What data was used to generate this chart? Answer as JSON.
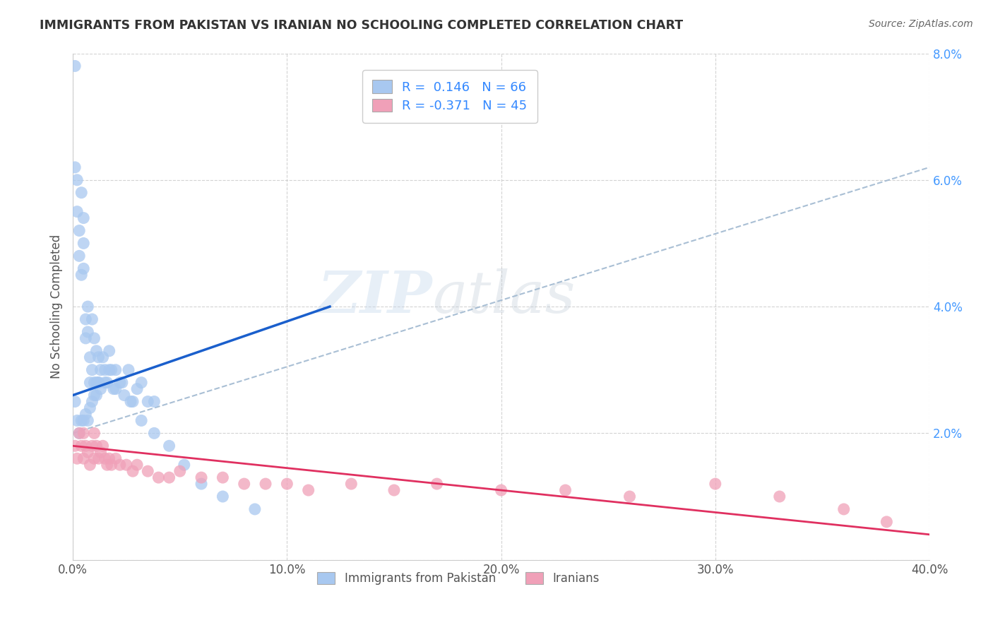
{
  "title": "IMMIGRANTS FROM PAKISTAN VS IRANIAN NO SCHOOLING COMPLETED CORRELATION CHART",
  "source": "Source: ZipAtlas.com",
  "ylabel": "No Schooling Completed",
  "xlim": [
    0.0,
    0.4
  ],
  "ylim": [
    0.0,
    0.08
  ],
  "xticks": [
    0.0,
    0.1,
    0.2,
    0.3,
    0.4
  ],
  "yticks": [
    0.0,
    0.02,
    0.04,
    0.06,
    0.08
  ],
  "xticklabels": [
    "0.0%",
    "10.0%",
    "20.0%",
    "30.0%",
    "40.0%"
  ],
  "yticklabels": [
    "",
    "2.0%",
    "4.0%",
    "6.0%",
    "8.0%"
  ],
  "background_color": "#ffffff",
  "grid_color": "#c8c8c8",
  "watermark_zip": "ZIP",
  "watermark_atlas": "atlas",
  "pakistan_color": "#a8c8f0",
  "pakistan_line_color": "#1a5fcc",
  "iranian_color": "#f0a0b8",
  "iranian_line_color": "#e03060",
  "dashed_line_color": "#a0b8d0",
  "title_color": "#333333",
  "ylabel_color": "#555555",
  "tick_color": "#555555",
  "right_tick_color": "#4499ff",
  "source_color": "#666666",
  "pakistan_R": 0.146,
  "pakistan_N": 66,
  "iranian_R": -0.371,
  "iranian_N": 45,
  "pakistan_x": [
    0.001,
    0.001,
    0.002,
    0.002,
    0.003,
    0.003,
    0.004,
    0.004,
    0.005,
    0.005,
    0.005,
    0.006,
    0.006,
    0.007,
    0.007,
    0.008,
    0.008,
    0.009,
    0.009,
    0.01,
    0.01,
    0.011,
    0.011,
    0.012,
    0.012,
    0.013,
    0.014,
    0.015,
    0.016,
    0.017,
    0.018,
    0.019,
    0.02,
    0.022,
    0.024,
    0.026,
    0.028,
    0.03,
    0.032,
    0.035,
    0.038,
    0.001,
    0.002,
    0.003,
    0.004,
    0.005,
    0.006,
    0.007,
    0.008,
    0.009,
    0.01,
    0.011,
    0.012,
    0.013,
    0.015,
    0.017,
    0.02,
    0.023,
    0.027,
    0.032,
    0.038,
    0.045,
    0.052,
    0.06,
    0.07,
    0.085
  ],
  "pakistan_y": [
    0.078,
    0.062,
    0.06,
    0.055,
    0.052,
    0.048,
    0.058,
    0.045,
    0.054,
    0.05,
    0.046,
    0.038,
    0.035,
    0.04,
    0.036,
    0.032,
    0.028,
    0.038,
    0.03,
    0.035,
    0.028,
    0.033,
    0.028,
    0.032,
    0.028,
    0.03,
    0.032,
    0.03,
    0.028,
    0.033,
    0.03,
    0.027,
    0.03,
    0.028,
    0.026,
    0.03,
    0.025,
    0.027,
    0.028,
    0.025,
    0.025,
    0.025,
    0.022,
    0.02,
    0.022,
    0.022,
    0.023,
    0.022,
    0.024,
    0.025,
    0.026,
    0.026,
    0.028,
    0.027,
    0.028,
    0.03,
    0.027,
    0.028,
    0.025,
    0.022,
    0.02,
    0.018,
    0.015,
    0.012,
    0.01,
    0.008
  ],
  "iranian_x": [
    0.001,
    0.002,
    0.003,
    0.004,
    0.005,
    0.005,
    0.006,
    0.007,
    0.008,
    0.009,
    0.01,
    0.01,
    0.011,
    0.012,
    0.013,
    0.014,
    0.015,
    0.016,
    0.017,
    0.018,
    0.02,
    0.022,
    0.025,
    0.028,
    0.03,
    0.035,
    0.04,
    0.045,
    0.05,
    0.06,
    0.07,
    0.08,
    0.09,
    0.1,
    0.11,
    0.13,
    0.15,
    0.17,
    0.2,
    0.23,
    0.26,
    0.3,
    0.33,
    0.36,
    0.38
  ],
  "iranian_y": [
    0.018,
    0.016,
    0.02,
    0.018,
    0.02,
    0.016,
    0.018,
    0.017,
    0.015,
    0.018,
    0.02,
    0.016,
    0.018,
    0.016,
    0.017,
    0.018,
    0.016,
    0.015,
    0.016,
    0.015,
    0.016,
    0.015,
    0.015,
    0.014,
    0.015,
    0.014,
    0.013,
    0.013,
    0.014,
    0.013,
    0.013,
    0.012,
    0.012,
    0.012,
    0.011,
    0.012,
    0.011,
    0.012,
    0.011,
    0.011,
    0.01,
    0.012,
    0.01,
    0.008,
    0.006
  ],
  "dashed_line_x": [
    0.0,
    0.4
  ],
  "dashed_line_y": [
    0.02,
    0.062
  ],
  "blue_trend_x": [
    0.0,
    0.12
  ],
  "blue_trend_y_start": 0.026,
  "blue_trend_y_end": 0.04,
  "pink_trend_x": [
    0.0,
    0.4
  ],
  "pink_trend_y_start": 0.018,
  "pink_trend_y_end": 0.004
}
